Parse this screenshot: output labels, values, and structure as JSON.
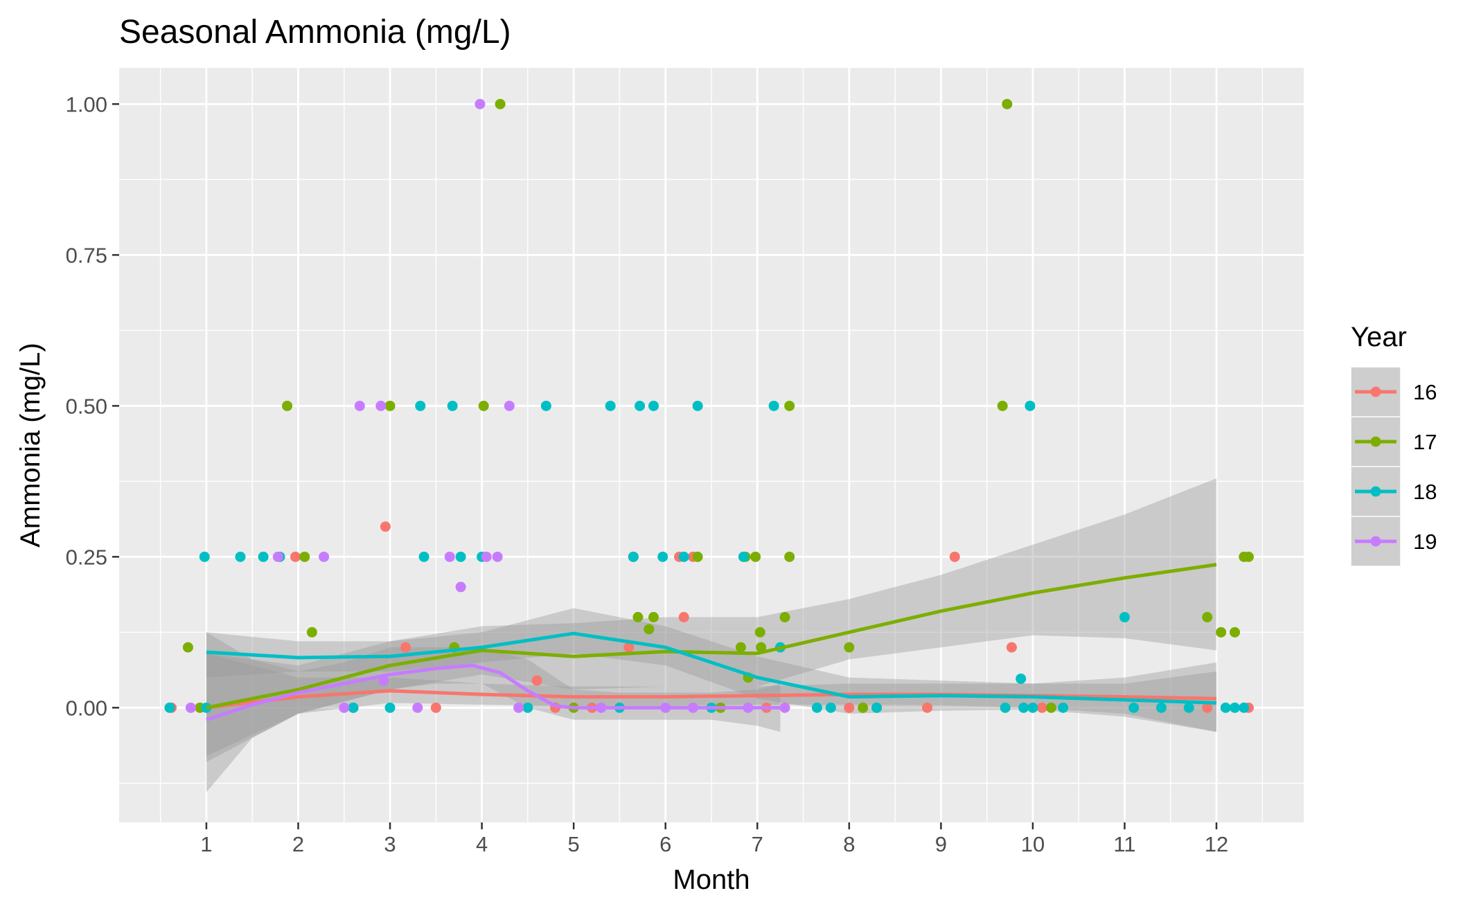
{
  "chart_data": {
    "type": "scatter",
    "title": "Seasonal Ammonia (mg/L)",
    "xlabel": "Month",
    "ylabel": "Ammonia (mg/L)",
    "xlim": [
      0.05,
      12.95
    ],
    "ylim": [
      -0.19,
      1.06
    ],
    "x_ticks": [
      1,
      2,
      3,
      4,
      5,
      6,
      7,
      8,
      9,
      10,
      11,
      12
    ],
    "x_tick_labels": [
      "1",
      "2",
      "3",
      "4",
      "5",
      "6",
      "7",
      "8",
      "9",
      "10",
      "11",
      "12"
    ],
    "y_ticks": [
      0,
      0.25,
      0.5,
      0.75,
      1
    ],
    "y_tick_labels": [
      "0.00",
      "0.25",
      "0.50",
      "0.75",
      "1.00"
    ],
    "grid": true,
    "legend": {
      "title": "Year",
      "position": "right"
    },
    "series": [
      {
        "name": "16",
        "color": "#F8766D",
        "points": [
          [
            0.62,
            0
          ],
          [
            1.97,
            0.25
          ],
          [
            2.95,
            0.3
          ],
          [
            3.17,
            0.1
          ],
          [
            4.6,
            0.045
          ],
          [
            5.6,
            0.1
          ],
          [
            6.15,
            0.25
          ],
          [
            6.2,
            0.15
          ],
          [
            6.3,
            0.25
          ],
          [
            8.0,
            0
          ],
          [
            8.85,
            0
          ],
          [
            9.15,
            0.25
          ],
          [
            9.77,
            0.1
          ],
          [
            11.9,
            0
          ],
          [
            12.35,
            0
          ],
          [
            3.5,
            0
          ],
          [
            5.2,
            0
          ],
          [
            2.6,
            0
          ],
          [
            4.8,
            0
          ],
          [
            7.1,
            0
          ],
          [
            10.1,
            0
          ]
        ],
        "smooth": [
          [
            1,
            0
          ],
          [
            2,
            0.018
          ],
          [
            3,
            0.028
          ],
          [
            4,
            0.022
          ],
          [
            5,
            0.018
          ],
          [
            6,
            0.018
          ],
          [
            7,
            0.02
          ],
          [
            8,
            0.022
          ],
          [
            9,
            0.022
          ],
          [
            10,
            0.02
          ],
          [
            11,
            0.018
          ],
          [
            12,
            0.015
          ]
        ],
        "band": [
          [
            1,
            -0.08,
            0.09
          ],
          [
            2,
            -0.01,
            0.05
          ],
          [
            3,
            0.008,
            0.05
          ],
          [
            4,
            0.005,
            0.04
          ],
          [
            5,
            0.003,
            0.035
          ],
          [
            6,
            0.003,
            0.035
          ],
          [
            7,
            0.005,
            0.035
          ],
          [
            8,
            0.005,
            0.04
          ],
          [
            9,
            0.004,
            0.04
          ],
          [
            10,
            0.0,
            0.04
          ],
          [
            11,
            -0.01,
            0.05
          ],
          [
            12,
            -0.04,
            0.075
          ]
        ]
      },
      {
        "name": "17",
        "color": "#7CAE00",
        "points": [
          [
            0.8,
            0.1
          ],
          [
            0.93,
            0
          ],
          [
            1.88,
            0.5
          ],
          [
            2.07,
            0.25
          ],
          [
            2.15,
            0.125
          ],
          [
            3.0,
            0.5
          ],
          [
            3.7,
            0.1
          ],
          [
            4.02,
            0.5
          ],
          [
            4.2,
            1.0
          ],
          [
            5.65,
            0.25
          ],
          [
            5.7,
            0.15
          ],
          [
            5.82,
            0.13
          ],
          [
            5.87,
            0.15
          ],
          [
            6.35,
            0.25
          ],
          [
            6.82,
            0.1
          ],
          [
            6.87,
            0.25
          ],
          [
            6.9,
            0.05
          ],
          [
            6.98,
            0.25
          ],
          [
            7.03,
            0.125
          ],
          [
            7.04,
            0.1
          ],
          [
            7.3,
            0.15
          ],
          [
            7.35,
            0.25
          ],
          [
            7.35,
            0.5
          ],
          [
            8.0,
            0.1
          ],
          [
            8.15,
            0
          ],
          [
            8.3,
            0
          ],
          [
            9.67,
            0.5
          ],
          [
            9.72,
            1.0
          ],
          [
            10.2,
            0
          ],
          [
            11.9,
            0.15
          ],
          [
            12.05,
            0.125
          ],
          [
            12.2,
            0.125
          ],
          [
            12.3,
            0.25
          ],
          [
            12.35,
            0.25
          ],
          [
            6.6,
            0
          ],
          [
            5.0,
            0
          ]
        ],
        "smooth": [
          [
            1,
            0
          ],
          [
            2,
            0.03
          ],
          [
            3,
            0.07
          ],
          [
            4,
            0.095
          ],
          [
            5,
            0.085
          ],
          [
            6,
            0.093
          ],
          [
            7,
            0.09
          ],
          [
            8,
            0.125
          ],
          [
            9,
            0.16
          ],
          [
            10,
            0.19
          ],
          [
            11,
            0.215
          ],
          [
            12,
            0.237
          ]
        ],
        "band": [
          [
            1,
            -0.09,
            0.09
          ],
          [
            2,
            -0.01,
            0.07
          ],
          [
            3,
            0.03,
            0.11
          ],
          [
            4,
            0.055,
            0.135
          ],
          [
            5,
            0.03,
            0.14
          ],
          [
            6,
            0.035,
            0.15
          ],
          [
            7,
            0.035,
            0.15
          ],
          [
            8,
            0.08,
            0.18
          ],
          [
            9,
            0.1,
            0.22
          ],
          [
            10,
            0.12,
            0.27
          ],
          [
            11,
            0.115,
            0.32
          ],
          [
            12,
            0.095,
            0.38
          ]
        ]
      },
      {
        "name": "18",
        "color": "#00BFC4",
        "points": [
          [
            0.6,
            0
          ],
          [
            0.98,
            0.25
          ],
          [
            1.0,
            0
          ],
          [
            1.37,
            0.25
          ],
          [
            1.62,
            0.25
          ],
          [
            1.8,
            0.25
          ],
          [
            2.6,
            0
          ],
          [
            3.33,
            0.5
          ],
          [
            3.37,
            0.25
          ],
          [
            3.68,
            0.5
          ],
          [
            3.77,
            0.25
          ],
          [
            4.0,
            0.25
          ],
          [
            4.7,
            0.5
          ],
          [
            5.4,
            0.5
          ],
          [
            5.65,
            0.25
          ],
          [
            5.72,
            0.5
          ],
          [
            5.87,
            0.5
          ],
          [
            5.97,
            0.25
          ],
          [
            6.2,
            0.25
          ],
          [
            6.35,
            0.5
          ],
          [
            6.85,
            0.25
          ],
          [
            7.18,
            0.5
          ],
          [
            7.25,
            0.1
          ],
          [
            7.65,
            0
          ],
          [
            7.8,
            0
          ],
          [
            8.3,
            0
          ],
          [
            9.7,
            0
          ],
          [
            9.87,
            0.048
          ],
          [
            9.97,
            0.5
          ],
          [
            10.0,
            0
          ],
          [
            10.33,
            0
          ],
          [
            11.0,
            0.15
          ],
          [
            11.1,
            0
          ],
          [
            11.4,
            0
          ],
          [
            12.1,
            0
          ],
          [
            12.2,
            0
          ],
          [
            12.3,
            0
          ],
          [
            3.0,
            0
          ],
          [
            4.5,
            0
          ],
          [
            5.5,
            0
          ],
          [
            6.5,
            0
          ],
          [
            9.9,
            0
          ],
          [
            11.7,
            0
          ]
        ],
        "smooth": [
          [
            1,
            0.092
          ],
          [
            2,
            0.083
          ],
          [
            3,
            0.085
          ],
          [
            4,
            0.1
          ],
          [
            5,
            0.123
          ],
          [
            6,
            0.1
          ],
          [
            7,
            0.05
          ],
          [
            8,
            0.018
          ],
          [
            9,
            0.02
          ],
          [
            10,
            0.018
          ],
          [
            11,
            0.013
          ],
          [
            12,
            0.008
          ]
        ],
        "band": [
          [
            1,
            0.05,
            0.125
          ],
          [
            2,
            0.06,
            0.11
          ],
          [
            3,
            0.06,
            0.11
          ],
          [
            4,
            0.075,
            0.125
          ],
          [
            5,
            0.09,
            0.165
          ],
          [
            6,
            0.07,
            0.135
          ],
          [
            7,
            0.015,
            0.085
          ],
          [
            8,
            -0.01,
            0.05
          ],
          [
            9,
            -0.005,
            0.045
          ],
          [
            10,
            -0.003,
            0.04
          ],
          [
            11,
            -0.015,
            0.04
          ],
          [
            12,
            -0.04,
            0.06
          ]
        ]
      },
      {
        "name": "19",
        "color": "#C77CFF",
        "points": [
          [
            0.83,
            0
          ],
          [
            1.78,
            0.25
          ],
          [
            2.28,
            0.25
          ],
          [
            2.67,
            0.5
          ],
          [
            2.9,
            0.5
          ],
          [
            2.93,
            0.045
          ],
          [
            3.65,
            0.25
          ],
          [
            3.77,
            0.2
          ],
          [
            3.98,
            1.0
          ],
          [
            4.05,
            0.25
          ],
          [
            4.17,
            0.25
          ],
          [
            4.3,
            0.5
          ],
          [
            5.3,
            0
          ],
          [
            6.0,
            0
          ],
          [
            6.3,
            0
          ],
          [
            7.3,
            0
          ],
          [
            2.5,
            0
          ],
          [
            3.3,
            0
          ],
          [
            4.4,
            0
          ],
          [
            6.9,
            0
          ]
        ],
        "smooth": [
          [
            1,
            -0.02
          ],
          [
            1.5,
            0.005
          ],
          [
            2,
            0.025
          ],
          [
            2.5,
            0.04
          ],
          [
            3,
            0.055
          ],
          [
            3.5,
            0.065
          ],
          [
            3.9,
            0.07
          ],
          [
            4.2,
            0.058
          ],
          [
            4.5,
            0.028
          ],
          [
            4.8,
            0.003
          ],
          [
            5,
            0
          ],
          [
            5.5,
            0
          ],
          [
            6,
            0
          ],
          [
            6.5,
            0
          ],
          [
            7,
            0
          ],
          [
            7.25,
            0
          ]
        ],
        "band": [
          [
            1,
            -0.14,
            0.125
          ],
          [
            1.5,
            -0.05,
            0.08
          ],
          [
            2,
            -0.01,
            0.06
          ],
          [
            2.5,
            0.01,
            0.075
          ],
          [
            3,
            0.03,
            0.1
          ],
          [
            3.5,
            0.04,
            0.1
          ],
          [
            4,
            0.04,
            0.1
          ],
          [
            4.5,
            0.0,
            0.08
          ],
          [
            5,
            -0.02,
            0.03
          ],
          [
            5.5,
            -0.02,
            0.025
          ],
          [
            6,
            -0.02,
            0.025
          ],
          [
            6.5,
            -0.02,
            0.025
          ],
          [
            7,
            -0.03,
            0.03
          ],
          [
            7.25,
            -0.04,
            0.04
          ]
        ]
      }
    ]
  }
}
